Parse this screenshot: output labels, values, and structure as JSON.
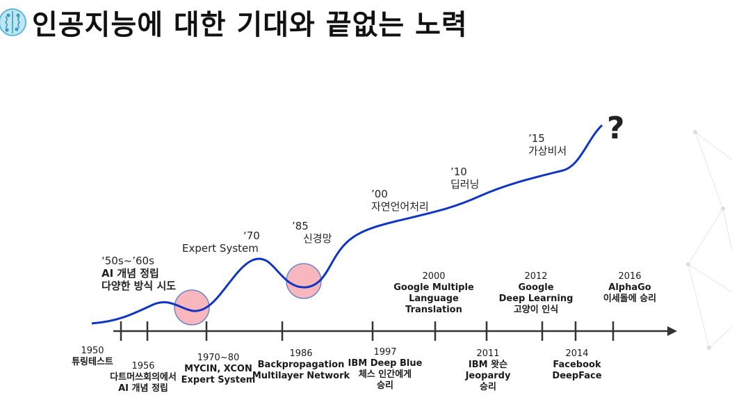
{
  "header": {
    "title": "인공지능에 대한 기대와 끝없는 노력",
    "icon": "brain-icon"
  },
  "curve_labels": {
    "fifties": {
      "line1": "‘50s~’60s",
      "line2": "AI 개념 정립",
      "line3": "다양한 방식 시도"
    },
    "seventies": {
      "line1": "‘70",
      "line2": "Expert System"
    },
    "eighty_five": {
      "line1": "’85",
      "line2": "신경망"
    },
    "two_thousand": {
      "line1": "’00",
      "line2": "자연언어처리"
    },
    "ten": {
      "line1": "’10",
      "line2": "딥러닝"
    },
    "fifteen": {
      "line1": "’15",
      "line2": "가상비서"
    },
    "question": "?"
  },
  "timeline_above": [
    {
      "year": "2000",
      "lines": [
        "Google Multiple",
        "Language",
        "Translation"
      ]
    },
    {
      "year": "2012",
      "lines": [
        "Google",
        "Deep Learning",
        "고양이 인식"
      ]
    },
    {
      "year": "2016",
      "lines": [
        "AlphaGo",
        "이세돌에 승리"
      ]
    }
  ],
  "timeline_below": [
    {
      "year": "1950",
      "lines": [
        "튜링테스트"
      ]
    },
    {
      "year": "1956",
      "lines": [
        "다트머쓰회의에서",
        "AI 개념 정립"
      ]
    },
    {
      "year": "1970~80",
      "lines": [
        "MYCIN, XCON",
        "Expert System"
      ]
    },
    {
      "year": "1986",
      "lines": [
        "Backpropagation",
        "Multilayer Network"
      ]
    },
    {
      "year": "1997",
      "lines": [
        "IBM Deep Blue",
        "체스 인간에게",
        "승리"
      ]
    },
    {
      "year": "2011",
      "lines": [
        "IBM 왓슨",
        "Jeopardy",
        "승리"
      ]
    },
    {
      "year": "2014",
      "lines": [
        "Facebook",
        "DeepFace"
      ]
    }
  ],
  "colors": {
    "curve": "#1034c4",
    "winter_circle": "#f7b7bc",
    "winter_stroke": "#6b84c9",
    "axis": "#333333"
  }
}
